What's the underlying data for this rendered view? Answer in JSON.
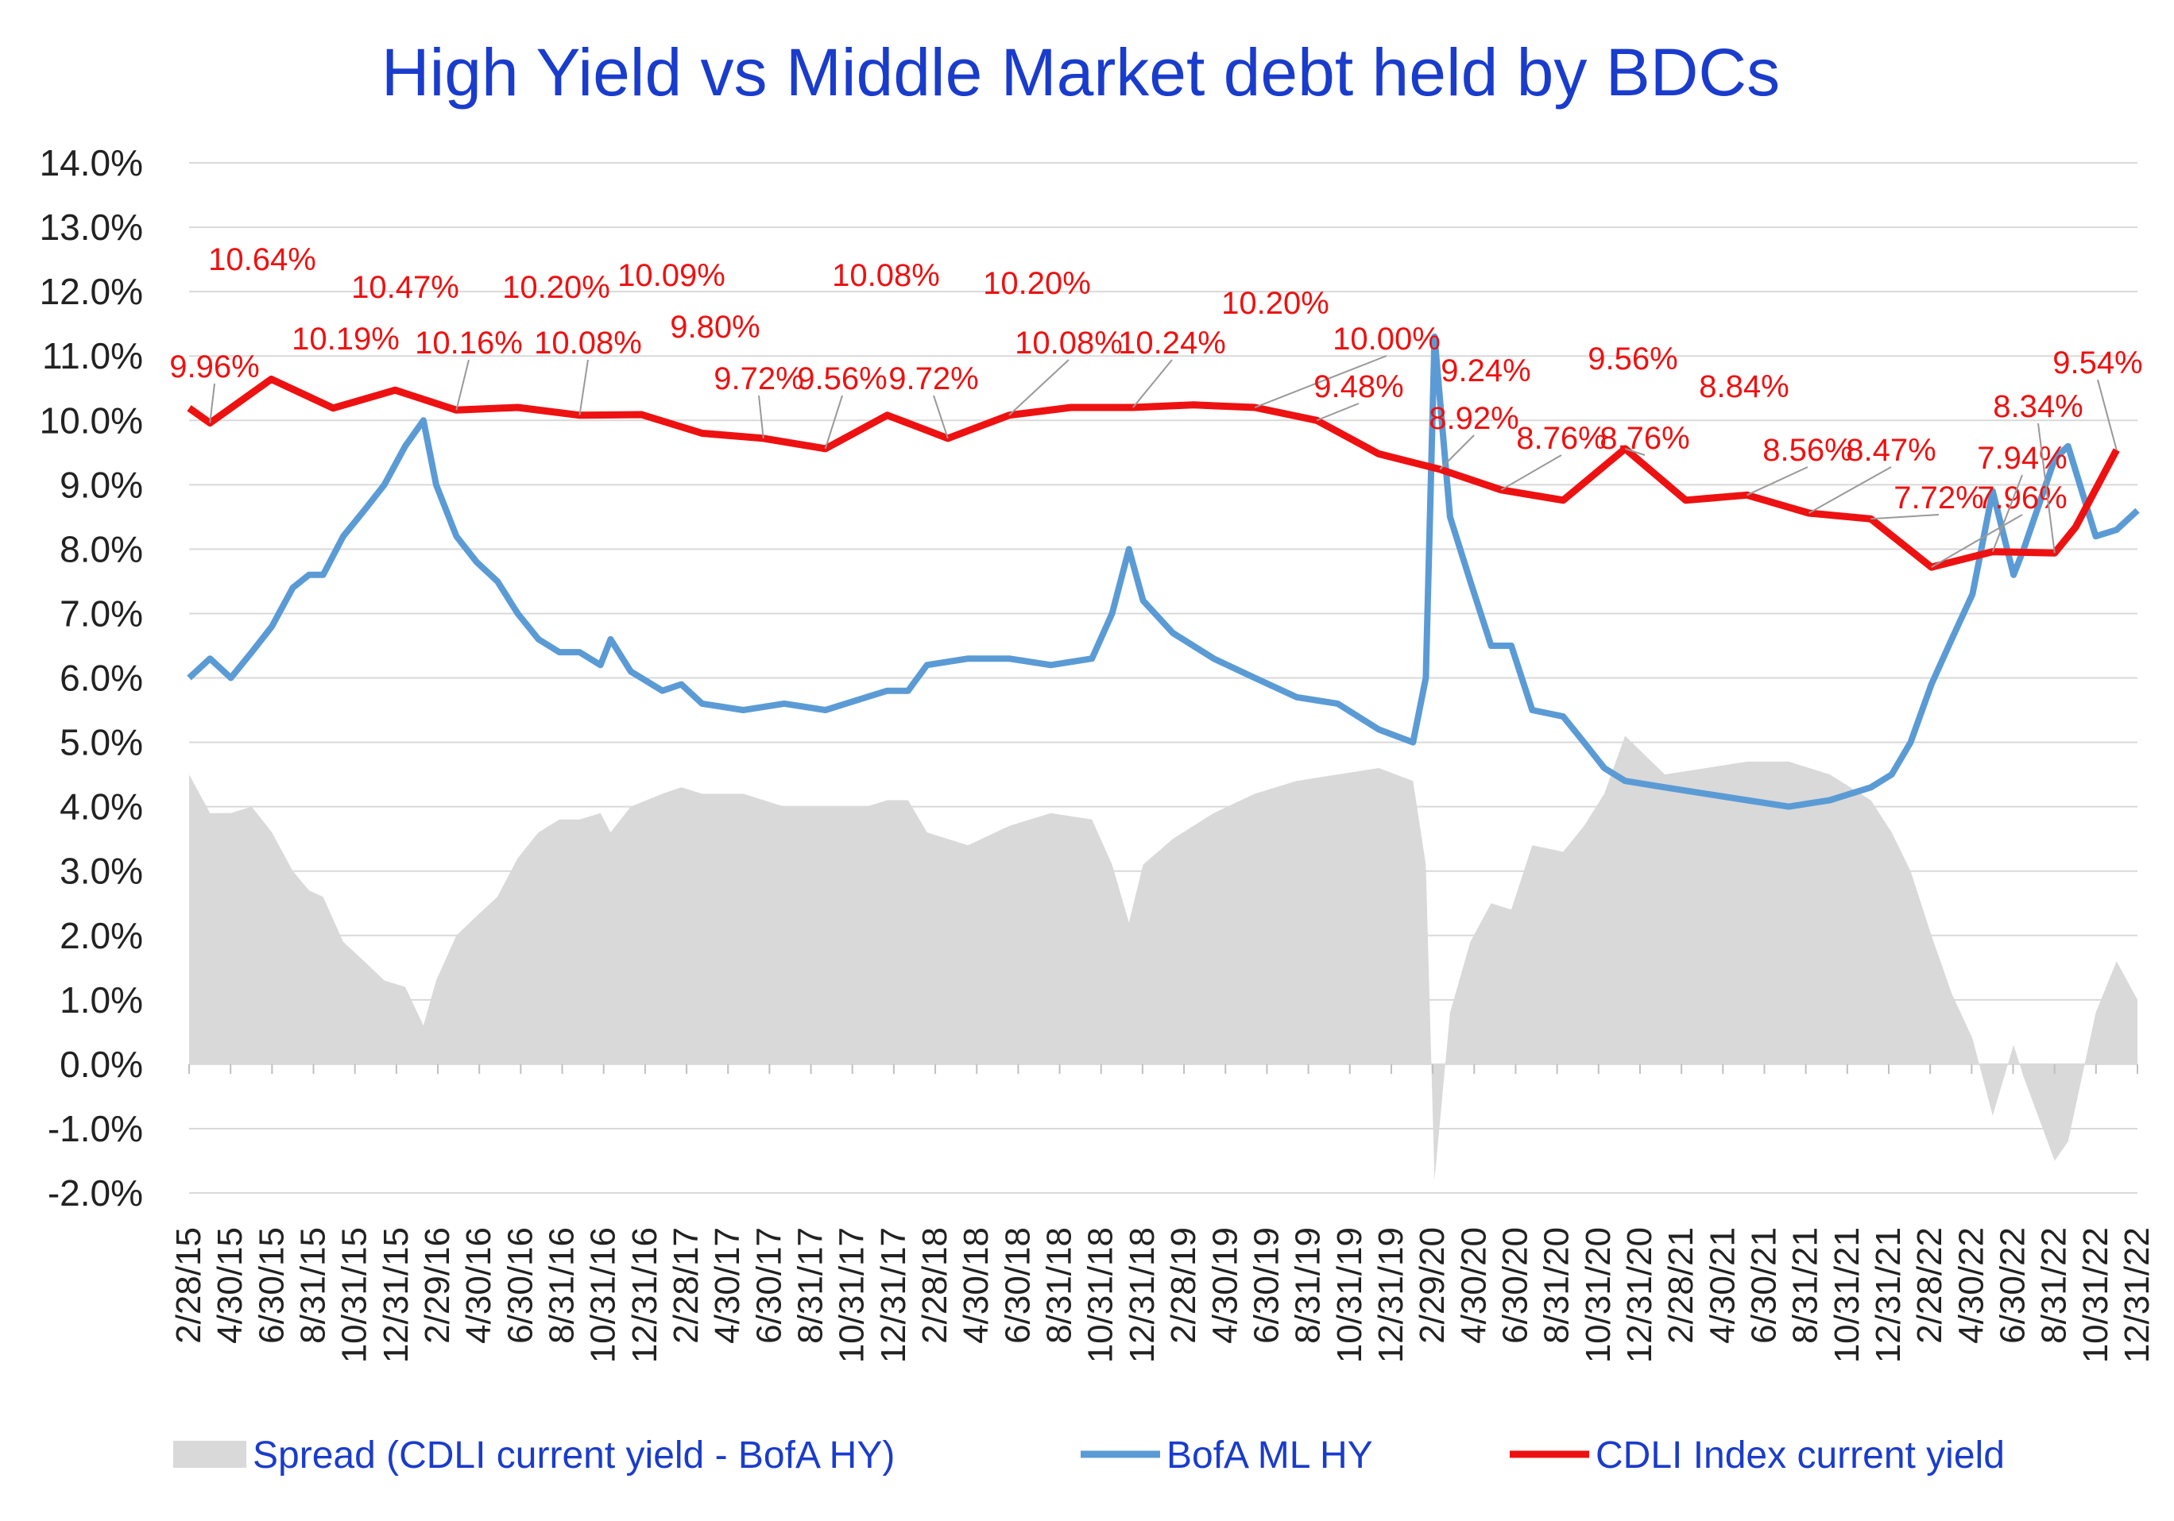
{
  "chart_data": {
    "type": "line",
    "title": "High Yield  vs  Middle Market debt held by BDCs",
    "ylim": [
      -0.02,
      0.14
    ],
    "y_ticks": [
      "14.0%",
      "13.0%",
      "12.0%",
      "11.0%",
      "10.0%",
      "9.0%",
      "8.0%",
      "7.0%",
      "6.0%",
      "5.0%",
      "4.0%",
      "3.0%",
      "2.0%",
      "1.0%",
      "0.0%",
      "-1.0%",
      "-2.0%"
    ],
    "x_ticks": [
      "2/28/15",
      "4/30/15",
      "6/30/15",
      "8/31/15",
      "10/31/15",
      "12/31/15",
      "2/29/16",
      "4/30/16",
      "6/30/16",
      "8/31/16",
      "10/31/16",
      "12/31/16",
      "2/28/17",
      "4/30/17",
      "6/30/17",
      "8/31/17",
      "10/31/17",
      "12/31/17",
      "2/28/18",
      "4/30/18",
      "6/30/18",
      "8/31/18",
      "10/31/18",
      "12/31/18",
      "2/28/19",
      "4/30/19",
      "6/30/19",
      "8/31/19",
      "10/31/19",
      "12/31/19",
      "2/29/20",
      "4/30/20",
      "6/30/20",
      "8/31/20",
      "10/31/20",
      "12/31/20",
      "2/28/21",
      "4/30/21",
      "6/30/21",
      "8/31/21",
      "10/31/21",
      "12/31/21",
      "2/28/22",
      "4/30/22",
      "6/30/22",
      "8/31/22",
      "10/31/22",
      "12/31/22"
    ],
    "grid": true,
    "legend_position": "bottom",
    "series": [
      {
        "name": "CDLI Index current yield",
        "type": "line",
        "color": "#ee1111",
        "x": [
          "2015-02-28",
          "2015-03-31",
          "2015-06-30",
          "2015-09-30",
          "2015-12-31",
          "2016-03-31",
          "2016-06-30",
          "2016-09-30",
          "2016-12-31",
          "2017-03-31",
          "2017-06-30",
          "2017-09-30",
          "2017-12-31",
          "2018-03-31",
          "2018-06-30",
          "2018-09-30",
          "2018-12-31",
          "2019-03-31",
          "2019-06-30",
          "2019-09-30",
          "2019-12-31",
          "2020-03-31",
          "2020-06-30",
          "2020-09-30",
          "2020-12-31",
          "2021-03-31",
          "2021-06-30",
          "2021-09-30",
          "2021-12-31",
          "2022-03-31",
          "2022-06-30",
          "2022-09-30",
          "2022-10-31",
          "2022-12-31"
        ],
        "values": [
          10.19,
          9.96,
          10.64,
          10.19,
          10.47,
          10.16,
          10.2,
          10.08,
          10.09,
          9.8,
          9.72,
          9.56,
          10.08,
          9.72,
          10.08,
          10.2,
          10.2,
          10.24,
          10.2,
          10.0,
          9.48,
          9.24,
          8.92,
          8.76,
          9.56,
          8.76,
          8.84,
          8.56,
          8.47,
          7.72,
          7.96,
          7.94,
          8.34,
          9.54
        ]
      },
      {
        "name": "BofA ML HY",
        "type": "line",
        "color": "#5b9bd5",
        "x": [
          "2015-02-28",
          "2015-03-31",
          "2015-05-01",
          "2015-06-01",
          "2015-07-01",
          "2015-08-01",
          "2015-08-25",
          "2015-09-15",
          "2015-10-15",
          "2015-11-15",
          "2015-12-15",
          "2016-01-15",
          "2016-02-11",
          "2016-03-01",
          "2016-03-31",
          "2016-04-30",
          "2016-05-31",
          "2016-06-30",
          "2016-07-31",
          "2016-08-31",
          "2016-09-30",
          "2016-10-31",
          "2016-11-15",
          "2016-12-15",
          "2017-01-31",
          "2017-02-28",
          "2017-03-31",
          "2017-05-31",
          "2017-07-31",
          "2017-09-30",
          "2017-11-30",
          "2017-12-31",
          "2018-01-31",
          "2018-02-28",
          "2018-04-30",
          "2018-06-30",
          "2018-08-31",
          "2018-10-31",
          "2018-11-30",
          "2018-12-25",
          "2019-01-15",
          "2019-02-28",
          "2019-04-30",
          "2019-06-30",
          "2019-08-31",
          "2019-10-31",
          "2019-12-31",
          "2020-02-20",
          "2020-03-10",
          "2020-03-23",
          "2020-04-15",
          "2020-05-15",
          "2020-06-15",
          "2020-07-15",
          "2020-08-15",
          "2020-09-30",
          "2020-10-31",
          "2020-11-30",
          "2020-12-31",
          "2021-02-28",
          "2021-04-30",
          "2021-06-30",
          "2021-08-31",
          "2021-10-31",
          "2021-12-31",
          "2022-01-31",
          "2022-02-28",
          "2022-03-31",
          "2022-04-30",
          "2022-05-31",
          "2022-06-30",
          "2022-07-31",
          "2022-08-15",
          "2022-09-30",
          "2022-10-20",
          "2022-11-30",
          "2022-12-31",
          "2023-01-31"
        ],
        "values": [
          6.0,
          6.3,
          6.0,
          6.4,
          6.8,
          7.4,
          7.6,
          7.6,
          8.2,
          8.6,
          9.0,
          9.6,
          10.0,
          9.0,
          8.2,
          7.8,
          7.5,
          7.0,
          6.6,
          6.4,
          6.4,
          6.2,
          6.6,
          6.1,
          5.8,
          5.9,
          5.6,
          5.5,
          5.6,
          5.5,
          5.7,
          5.8,
          5.8,
          6.2,
          6.3,
          6.3,
          6.2,
          6.3,
          7.0,
          8.0,
          7.2,
          6.7,
          6.3,
          6.0,
          5.7,
          5.6,
          5.2,
          5.0,
          6.0,
          11.3,
          8.5,
          7.5,
          6.5,
          6.5,
          5.5,
          5.4,
          5.0,
          4.6,
          4.4,
          4.3,
          4.2,
          4.1,
          4.0,
          4.1,
          4.3,
          4.5,
          5.0,
          5.9,
          6.6,
          7.3,
          8.9,
          7.6,
          8.0,
          9.4,
          9.6,
          8.2,
          8.3,
          8.6
        ]
      },
      {
        "name": "Spread (CDLI current yield - BofA HY)",
        "type": "area",
        "color": "#d9d9d9",
        "x": [
          "2015-02-28",
          "2015-03-31",
          "2015-05-01",
          "2015-06-01",
          "2015-07-01",
          "2015-08-01",
          "2015-08-25",
          "2015-09-15",
          "2015-10-15",
          "2015-11-15",
          "2015-12-15",
          "2016-01-15",
          "2016-02-11",
          "2016-03-01",
          "2016-03-31",
          "2016-04-30",
          "2016-05-31",
          "2016-06-30",
          "2016-07-31",
          "2016-08-31",
          "2016-09-30",
          "2016-10-31",
          "2016-11-15",
          "2016-12-15",
          "2017-01-31",
          "2017-02-28",
          "2017-03-31",
          "2017-05-31",
          "2017-07-31",
          "2017-09-30",
          "2017-11-30",
          "2017-12-31",
          "2018-01-31",
          "2018-02-28",
          "2018-04-30",
          "2018-06-30",
          "2018-08-31",
          "2018-10-31",
          "2018-11-30",
          "2018-12-25",
          "2019-01-15",
          "2019-02-28",
          "2019-04-30",
          "2019-06-30",
          "2019-08-31",
          "2019-10-31",
          "2019-12-31",
          "2020-02-20",
          "2020-03-10",
          "2020-03-23",
          "2020-04-15",
          "2020-05-15",
          "2020-06-15",
          "2020-07-15",
          "2020-08-15",
          "2020-09-30",
          "2020-10-31",
          "2020-11-30",
          "2020-12-31",
          "2021-02-28",
          "2021-04-30",
          "2021-06-30",
          "2021-08-31",
          "2021-10-31",
          "2021-12-31",
          "2022-01-31",
          "2022-02-28",
          "2022-03-31",
          "2022-04-30",
          "2022-05-31",
          "2022-06-30",
          "2022-07-31",
          "2022-08-15",
          "2022-09-30",
          "2022-10-20",
          "2022-11-30",
          "2022-12-31",
          "2023-01-31"
        ],
        "values": [
          4.5,
          3.9,
          3.9,
          4.0,
          3.6,
          3.0,
          2.7,
          2.6,
          1.9,
          1.6,
          1.3,
          1.2,
          0.6,
          1.3,
          2.0,
          2.3,
          2.6,
          3.2,
          3.6,
          3.8,
          3.8,
          3.9,
          3.6,
          4.0,
          4.2,
          4.3,
          4.2,
          4.2,
          4.0,
          4.0,
          4.0,
          4.1,
          4.1,
          3.6,
          3.4,
          3.7,
          3.9,
          3.8,
          3.1,
          2.2,
          3.1,
          3.5,
          3.9,
          4.2,
          4.4,
          4.5,
          4.6,
          4.4,
          3.1,
          -1.8,
          0.8,
          1.9,
          2.5,
          2.4,
          3.4,
          3.3,
          3.7,
          4.2,
          5.1,
          4.5,
          4.6,
          4.7,
          4.7,
          4.5,
          4.1,
          3.6,
          3.0,
          2.0,
          1.1,
          0.4,
          -0.8,
          0.3,
          -0.2,
          -1.5,
          -1.2,
          0.8,
          1.6,
          1.0
        ]
      }
    ],
    "data_labels": [
      "9.96%",
      "10.64%",
      "10.19%",
      "10.47%",
      "10.16%",
      "10.20%",
      "10.08%",
      "10.09%",
      "9.80%",
      "9.72%",
      "9.56%",
      "10.08%",
      "9.72%",
      "10.08%",
      "10.20%",
      "10.24%",
      "10.20%",
      "10.00%",
      "9.48%",
      "9.24%",
      "8.92%",
      "8.76%",
      "9.56%",
      "8.76%",
      "8.84%",
      "8.56%",
      "8.47%",
      "7.72%",
      "7.96%",
      "7.94%",
      "8.34%",
      "9.54%"
    ]
  }
}
